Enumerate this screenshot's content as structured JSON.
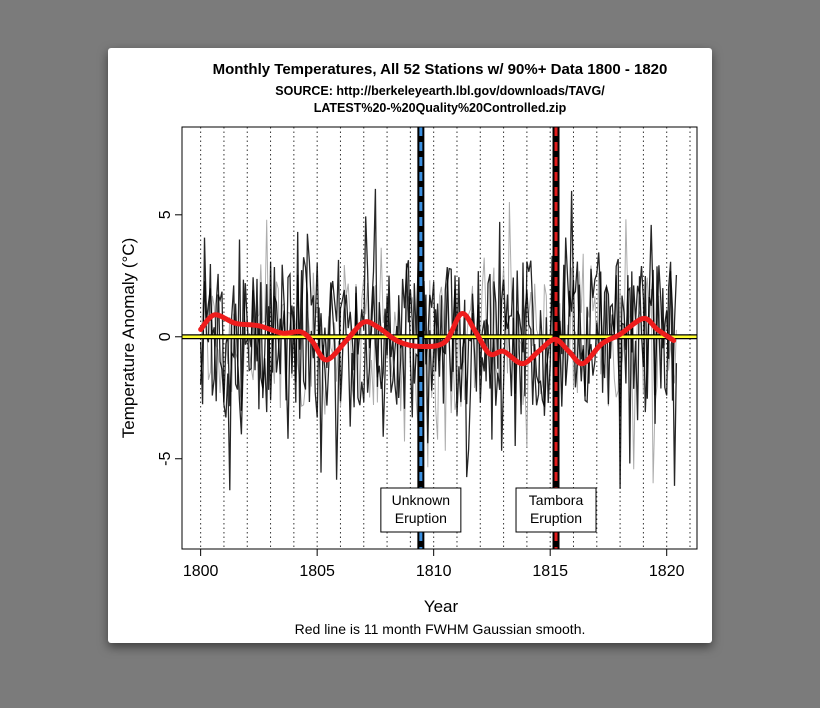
{
  "chart_data": {
    "type": "line",
    "title": "Monthly Temperatures, All 52 Stations w/ 90%+ Data 1800 - 1820",
    "subtitle_lines": [
      "SOURCE: http://berkeleyearth.lbl.gov/downloads/TAVG/",
      "LATEST%20-%20Quality%20Controlled.zip"
    ],
    "xlabel": "Year",
    "ylabel": "Temperature Anomaly (°C)",
    "caption": "Red line is 11 month FWHM Gaussian smooth.",
    "xlim": [
      1799.2,
      1821.3
    ],
    "ylim": [
      -8.7,
      8.6
    ],
    "xticks": [
      1800,
      1805,
      1810,
      1815,
      1820
    ],
    "xtick_labels": [
      "1800",
      "1805",
      "1810",
      "1815",
      "1820"
    ],
    "yticks": [
      -5,
      0,
      5
    ],
    "ytick_labels": [
      "-5",
      "0",
      "5"
    ],
    "grid": "dotted vertical lines each year",
    "zero_line_color": "#ffff33",
    "monthly_series_color": "#000000",
    "smooth": {
      "color": "#ee1c1c",
      "x": [
        1800.0,
        1800.6,
        1801.5,
        1802.5,
        1803.5,
        1804.3,
        1804.8,
        1805.4,
        1806.3,
        1807.0,
        1807.6,
        1808.5,
        1809.5,
        1810.5,
        1811.2,
        1811.8,
        1812.4,
        1813.0,
        1813.8,
        1814.5,
        1815.2,
        1815.8,
        1816.4,
        1817.2,
        1818.0,
        1819.0,
        1819.6,
        1820.3
      ],
      "y": [
        0.3,
        0.9,
        0.55,
        0.45,
        0.15,
        0.2,
        -0.2,
        -0.95,
        -0.1,
        0.6,
        0.4,
        -0.2,
        -0.4,
        -0.2,
        0.95,
        0.2,
        -0.7,
        -0.6,
        -1.1,
        -0.6,
        -0.1,
        -0.6,
        -1.1,
        -0.3,
        0.1,
        0.75,
        0.3,
        -0.15
      ]
    },
    "annotations": [
      {
        "x": 1809.45,
        "lines": [
          "Unknown",
          "Eruption"
        ],
        "color": "#3a8fe0"
      },
      {
        "x": 1815.25,
        "lines": [
          "Tambora",
          "Eruption"
        ],
        "color": "#e01c1c"
      }
    ]
  }
}
